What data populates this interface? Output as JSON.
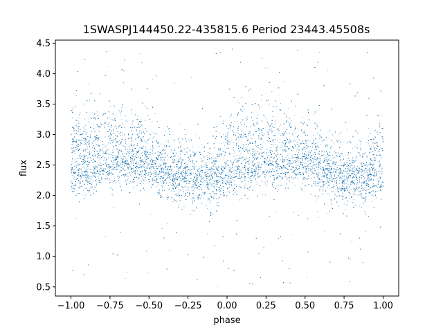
{
  "chart_data": {
    "type": "scatter",
    "title": "1SWASPJ144450.22-435815.6 Period 23443.45508s",
    "xlabel": "phase",
    "ylabel": "flux",
    "xlim": [
      -1.1,
      1.1
    ],
    "ylim": [
      0.35,
      4.55
    ],
    "x_ticks": [
      -1.0,
      -0.75,
      -0.5,
      -0.25,
      0.0,
      0.25,
      0.5,
      0.75,
      1.0
    ],
    "x_tick_labels": [
      "−1.00",
      "−0.75",
      "−0.50",
      "−0.25",
      "0.00",
      "0.25",
      "0.50",
      "0.75",
      "1.00"
    ],
    "y_ticks": [
      0.5,
      1.0,
      1.5,
      2.0,
      2.5,
      3.0,
      3.5,
      4.0,
      4.5
    ],
    "y_tick_labels": [
      "0.5",
      "1.0",
      "1.5",
      "2.0",
      "2.5",
      "3.0",
      "3.5",
      "4.0",
      "4.5"
    ],
    "grid": false,
    "marker_color": "#1f77b4",
    "series": [
      {
        "description_profile": "phase-folded light curve; dense band of points spanning phase -1 to 1",
        "phase": [
          -1.0,
          -0.9,
          -0.8,
          -0.7,
          -0.6,
          -0.5,
          -0.4,
          -0.3,
          -0.2,
          -0.1,
          0.0,
          0.1,
          0.2,
          0.3,
          0.4,
          0.5,
          0.6,
          0.7,
          0.8,
          0.9,
          1.0
        ],
        "upper_branch_flux": [
          2.85,
          2.9,
          2.95,
          2.95,
          2.9,
          2.75,
          2.55,
          2.4,
          2.35,
          2.4,
          2.7,
          2.9,
          2.95,
          2.95,
          2.9,
          2.75,
          2.55,
          2.4,
          2.35,
          2.45,
          2.85
        ],
        "lower_branch_flux": [
          2.3,
          2.35,
          2.45,
          2.5,
          2.5,
          2.45,
          2.35,
          2.3,
          2.25,
          2.25,
          2.3,
          2.35,
          2.45,
          2.5,
          2.5,
          2.45,
          2.35,
          2.3,
          2.25,
          2.25,
          2.3
        ],
        "flux_min": 0.5,
        "flux_max": 4.45
      }
    ]
  }
}
